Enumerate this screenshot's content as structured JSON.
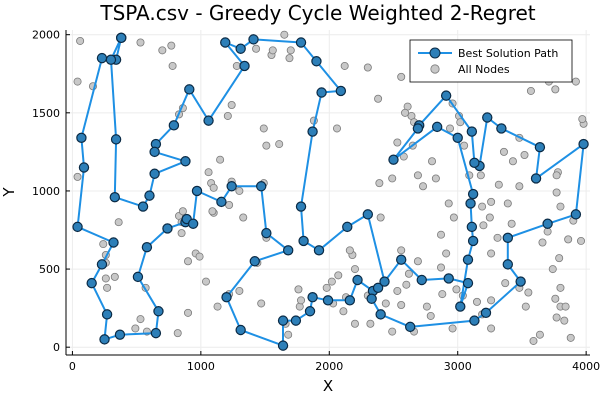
{
  "chart_data": {
    "type": "scatter",
    "title": "TSPA.csv - Greedy Cycle Weighted 2-Regret",
    "xlabel": "X",
    "ylabel": "Y",
    "xlim": [
      -50,
      4030
    ],
    "ylim": [
      -50,
      2030
    ],
    "xticks": [
      0,
      1000,
      2000,
      3000,
      4000
    ],
    "yticks": [
      0,
      500,
      1000,
      1500,
      2000
    ],
    "grid": true,
    "legend_position": "top-right",
    "colors": {
      "path": "#1e90e4",
      "path_marker": "#2d7fb8",
      "path_marker_stroke": "#0a2a45",
      "node": "#c8c8c8",
      "node_stroke": "#7a7a7a"
    },
    "series": [
      {
        "name": "Best Solution Path",
        "style": "line+markers",
        "points": [
          [
            380,
            1980
          ],
          [
            340,
            1840
          ],
          [
            230,
            1850
          ],
          [
            70,
            1340
          ],
          [
            90,
            1150
          ],
          [
            40,
            770
          ],
          [
            320,
            670
          ],
          [
            230,
            530
          ],
          [
            150,
            410
          ],
          [
            270,
            210
          ],
          [
            250,
            50
          ],
          [
            370,
            80
          ],
          [
            650,
            90
          ],
          [
            670,
            230
          ],
          [
            510,
            450
          ],
          [
            580,
            640
          ],
          [
            740,
            760
          ],
          [
            880,
            800
          ],
          [
            890,
            820
          ],
          [
            940,
            790
          ],
          [
            970,
            1000
          ],
          [
            1160,
            930
          ],
          [
            1240,
            1030
          ],
          [
            1470,
            1030
          ],
          [
            1510,
            730
          ],
          [
            1680,
            620
          ],
          [
            1420,
            550
          ],
          [
            1200,
            320
          ],
          [
            1310,
            110
          ],
          [
            1640,
            10
          ],
          [
            1640,
            170
          ],
          [
            1740,
            170
          ],
          [
            1850,
            230
          ],
          [
            1870,
            320
          ],
          [
            1990,
            300
          ],
          [
            2160,
            300
          ],
          [
            2220,
            430
          ],
          [
            2340,
            360
          ],
          [
            2380,
            380
          ],
          [
            2330,
            310
          ],
          [
            2400,
            210
          ],
          [
            2630,
            130
          ],
          [
            3130,
            170
          ],
          [
            3220,
            220
          ],
          [
            3490,
            420
          ],
          [
            3390,
            530
          ],
          [
            3390,
            700
          ],
          [
            3700,
            790
          ],
          [
            3920,
            850
          ],
          [
            3980,
            1300
          ],
          [
            3610,
            1080
          ],
          [
            3640,
            1280
          ],
          [
            3340,
            1400
          ],
          [
            3230,
            1470
          ],
          [
            3170,
            1160
          ],
          [
            3130,
            1180
          ],
          [
            3110,
            1380
          ],
          [
            2910,
            1610
          ],
          [
            2700,
            1420
          ],
          [
            2690,
            1400
          ],
          [
            2500,
            1200
          ],
          [
            2840,
            1410
          ],
          [
            3000,
            1340
          ],
          [
            3120,
            980
          ],
          [
            3100,
            920
          ],
          [
            3110,
            770
          ],
          [
            3120,
            680
          ],
          [
            3080,
            560
          ],
          [
            3020,
            260
          ],
          [
            3080,
            410
          ],
          [
            2930,
            440
          ],
          [
            2720,
            430
          ],
          [
            2560,
            560
          ],
          [
            2430,
            420
          ],
          [
            2300,
            850
          ],
          [
            2140,
            770
          ],
          [
            1920,
            620
          ],
          [
            1800,
            680
          ],
          [
            1780,
            900
          ],
          [
            1870,
            1380
          ],
          [
            1940,
            1630
          ],
          [
            2090,
            1640
          ],
          [
            1900,
            1830
          ],
          [
            1780,
            1950
          ],
          [
            1410,
            1970
          ],
          [
            1310,
            1910
          ],
          [
            1190,
            1950
          ],
          [
            1340,
            1800
          ],
          [
            1060,
            1450
          ],
          [
            910,
            1650
          ],
          [
            790,
            1420
          ],
          [
            650,
            1300
          ],
          [
            640,
            1250
          ],
          [
            880,
            1190
          ],
          [
            640,
            1110
          ],
          [
            600,
            970
          ],
          [
            550,
            900
          ],
          [
            330,
            960
          ],
          [
            340,
            1330
          ],
          [
            300,
            1840
          ],
          [
            380,
            1980
          ]
        ]
      },
      {
        "name": "All Nodes",
        "style": "markers",
        "points": [
          [
            60,
            1960
          ],
          [
            40,
            1700
          ],
          [
            160,
            1670
          ],
          [
            40,
            1090
          ],
          [
            360,
            800
          ],
          [
            240,
            660
          ],
          [
            260,
            590
          ],
          [
            260,
            540
          ],
          [
            260,
            440
          ],
          [
            270,
            380
          ],
          [
            330,
            450
          ],
          [
            570,
            380
          ],
          [
            530,
            180
          ],
          [
            490,
            120
          ],
          [
            580,
            100
          ],
          [
            820,
            90
          ],
          [
            900,
            220
          ],
          [
            780,
            1800
          ],
          [
            860,
            1530
          ],
          [
            830,
            1490
          ],
          [
            530,
            1950
          ],
          [
            700,
            1900
          ],
          [
            770,
            1930
          ],
          [
            1220,
            910
          ],
          [
            1100,
            860
          ],
          [
            1300,
            1000
          ],
          [
            1060,
            1120
          ],
          [
            1080,
            1050
          ],
          [
            1090,
            870
          ],
          [
            830,
            840
          ],
          [
            860,
            870
          ],
          [
            850,
            800
          ],
          [
            850,
            730
          ],
          [
            960,
            600
          ],
          [
            990,
            580
          ],
          [
            900,
            550
          ],
          [
            1040,
            420
          ],
          [
            1300,
            360
          ],
          [
            1220,
            340
          ],
          [
            1130,
            260
          ],
          [
            1440,
            540
          ],
          [
            1470,
            280
          ],
          [
            1330,
            830
          ],
          [
            1490,
            1400
          ],
          [
            1510,
            1290
          ],
          [
            1490,
            1050
          ],
          [
            1610,
            1300
          ],
          [
            1510,
            700
          ],
          [
            1760,
            370
          ],
          [
            1770,
            260
          ],
          [
            1680,
            80
          ],
          [
            1660,
            150
          ],
          [
            1780,
            300
          ],
          [
            1690,
            1850
          ],
          [
            1880,
            1450
          ],
          [
            1550,
            1870
          ],
          [
            1560,
            1900
          ],
          [
            1700,
            1900
          ],
          [
            1650,
            2000
          ],
          [
            1430,
            1910
          ],
          [
            1280,
            1800
          ],
          [
            1240,
            1550
          ],
          [
            1210,
            1480
          ],
          [
            1150,
            1200
          ],
          [
            1240,
            1060
          ],
          [
            1100,
            1020
          ],
          [
            2060,
            1400
          ],
          [
            2120,
            1800
          ],
          [
            2300,
            1790
          ],
          [
            2380,
            1590
          ],
          [
            2560,
            1730
          ],
          [
            2610,
            1540
          ],
          [
            2530,
            1310
          ],
          [
            2580,
            1220
          ],
          [
            2490,
            1080
          ],
          [
            2390,
            1050
          ],
          [
            2400,
            830
          ],
          [
            2690,
            1100
          ],
          [
            2730,
            1030
          ],
          [
            2830,
            1080
          ],
          [
            2800,
            1190
          ],
          [
            2940,
            1400
          ],
          [
            2960,
            1560
          ],
          [
            2650,
            1290
          ],
          [
            2640,
            1480
          ],
          [
            2590,
            1500
          ],
          [
            2660,
            1440
          ],
          [
            3010,
            1480
          ],
          [
            3020,
            1440
          ],
          [
            3050,
            1290
          ],
          [
            3090,
            1100
          ],
          [
            3190,
            900
          ],
          [
            3250,
            830
          ],
          [
            3390,
            920
          ],
          [
            3480,
            1030
          ],
          [
            3520,
            1230
          ],
          [
            3480,
            1340
          ],
          [
            3430,
            1190
          ],
          [
            3360,
            1250
          ],
          [
            3570,
            1640
          ],
          [
            3710,
            1700
          ],
          [
            3760,
            1650
          ],
          [
            3780,
            1120
          ],
          [
            3770,
            1100
          ],
          [
            3770,
            990
          ],
          [
            3800,
            900
          ],
          [
            3700,
            740
          ],
          [
            3660,
            670
          ],
          [
            3790,
            570
          ],
          [
            3860,
            690
          ],
          [
            3900,
            810
          ],
          [
            3960,
            680
          ],
          [
            3980,
            1430
          ],
          [
            3970,
            1460
          ],
          [
            3920,
            1700
          ],
          [
            3740,
            500
          ],
          [
            3800,
            380
          ],
          [
            3800,
            260
          ],
          [
            3830,
            170
          ],
          [
            3770,
            190
          ],
          [
            3760,
            310
          ],
          [
            3840,
            260
          ],
          [
            3880,
            60
          ],
          [
            3640,
            80
          ],
          [
            3590,
            40
          ],
          [
            3530,
            260
          ],
          [
            3550,
            350
          ],
          [
            3480,
            380
          ],
          [
            3370,
            410
          ],
          [
            3260,
            300
          ],
          [
            3150,
            290
          ],
          [
            3190,
            210
          ],
          [
            3260,
            120
          ],
          [
            3260,
            600
          ],
          [
            3310,
            700
          ],
          [
            3420,
            790
          ],
          [
            3200,
            780
          ],
          [
            3260,
            930
          ],
          [
            3180,
            1100
          ],
          [
            3320,
            1040
          ],
          [
            2930,
            920
          ],
          [
            2970,
            830
          ],
          [
            2870,
            720
          ],
          [
            2910,
            600
          ],
          [
            2870,
            510
          ],
          [
            2690,
            550
          ],
          [
            2560,
            620
          ],
          [
            2620,
            470
          ],
          [
            2600,
            400
          ],
          [
            2530,
            360
          ],
          [
            2560,
            270
          ],
          [
            2440,
            280
          ],
          [
            2300,
            330
          ],
          [
            2200,
            500
          ],
          [
            2180,
            590
          ],
          [
            2160,
            620
          ],
          [
            2070,
            460
          ],
          [
            2020,
            420
          ],
          [
            1980,
            380
          ],
          [
            2030,
            280
          ],
          [
            2110,
            230
          ],
          [
            2130,
            320
          ],
          [
            2200,
            150
          ],
          [
            2320,
            150
          ],
          [
            2490,
            100
          ],
          [
            2660,
            100
          ],
          [
            2790,
            200
          ],
          [
            2880,
            340
          ],
          [
            2990,
            370
          ],
          [
            3040,
            330
          ],
          [
            2960,
            120
          ],
          [
            2760,
            260
          ]
        ]
      }
    ]
  }
}
